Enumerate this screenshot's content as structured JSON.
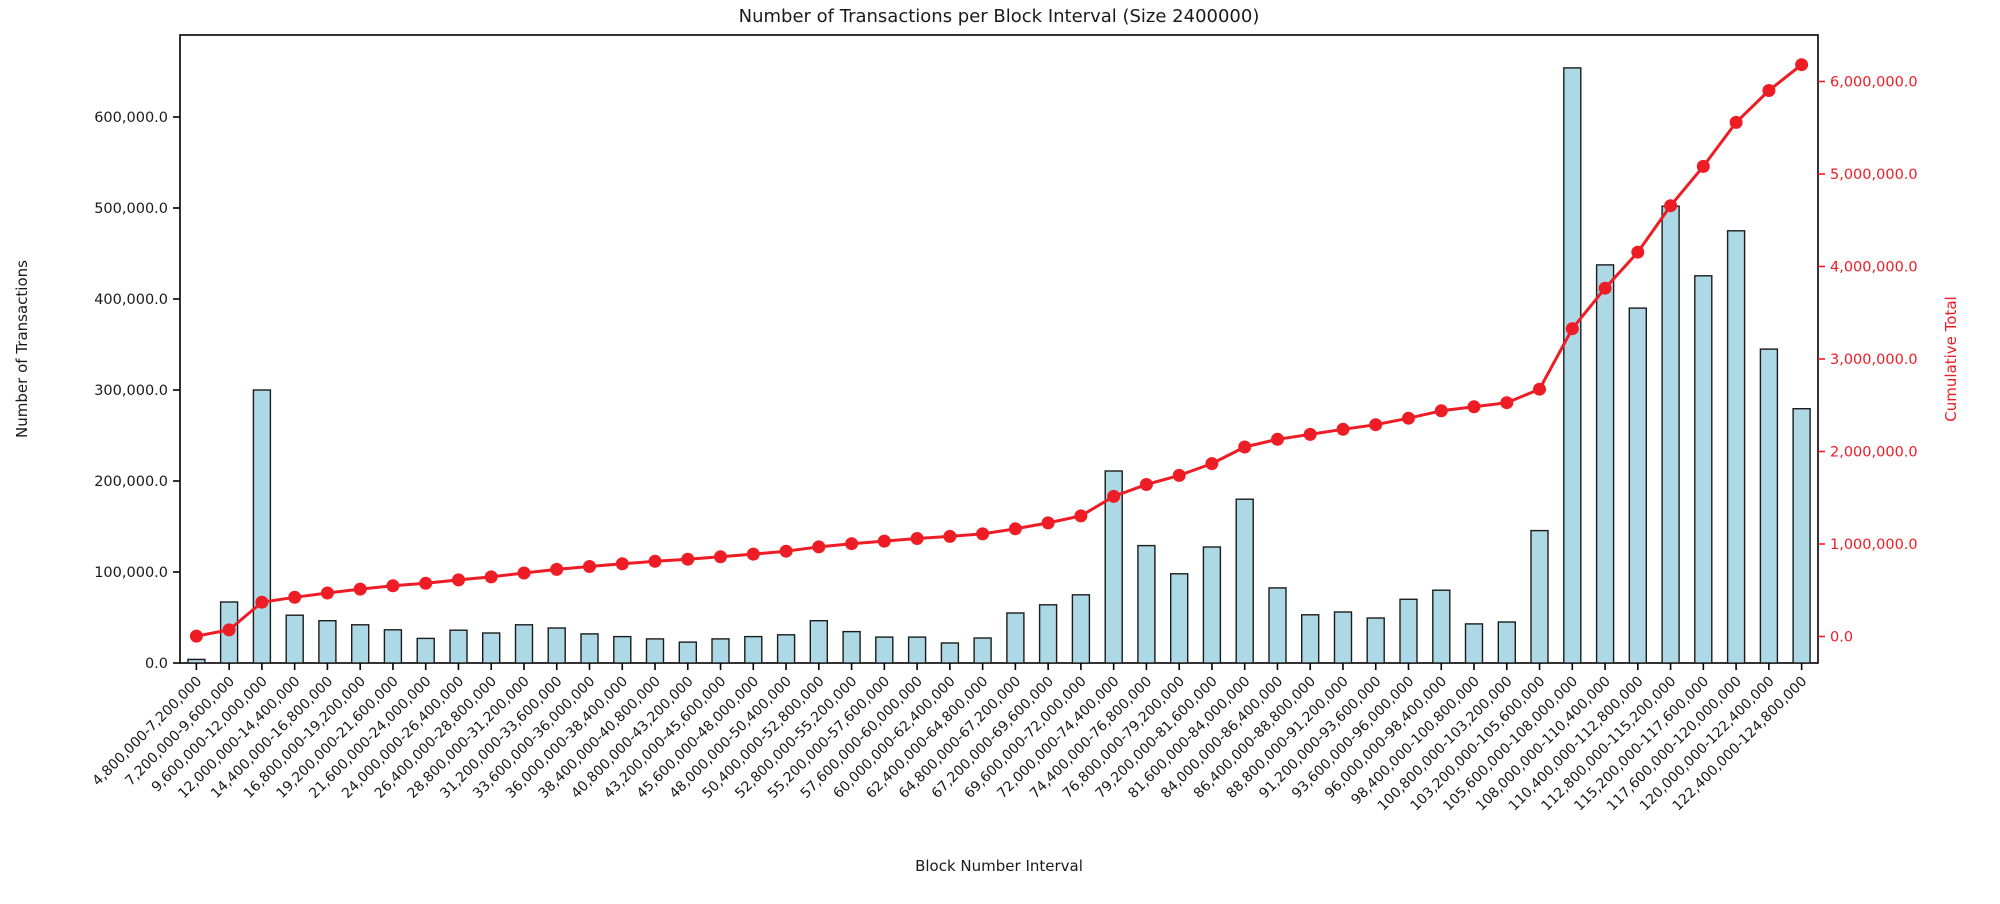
{
  "chart_data": {
    "type": "bar",
    "combo": "bar+line",
    "title": "Number of Transactions per Block Interval (Size 2400000)",
    "xlabel": "Block Number Interval",
    "ylabel_left": "Number of Transactions",
    "ylabel_right": "Cumulative Total",
    "legend_position": "none",
    "grid": false,
    "colors": {
      "bar_fill": "#add8e6",
      "bar_edge": "#1c1c1c",
      "line": "#ee1c25",
      "axis_text": "#1a1a1a",
      "spine": "#000000"
    },
    "categories": [
      "4,800,000-7,200,000",
      "7,200,000-9,600,000",
      "9,600,000-12,000,000",
      "12,000,000-14,400,000",
      "14,400,000-16,800,000",
      "16,800,000-19,200,000",
      "19,200,000-21,600,000",
      "21,600,000-24,000,000",
      "24,000,000-26,400,000",
      "26,400,000-28,800,000",
      "28,800,000-31,200,000",
      "31,200,000-33,600,000",
      "33,600,000-36,000,000",
      "36,000,000-38,400,000",
      "38,400,000-40,800,000",
      "40,800,000-43,200,000",
      "43,200,000-45,600,000",
      "45,600,000-48,000,000",
      "48,000,000-50,400,000",
      "50,400,000-52,800,000",
      "52,800,000-55,200,000",
      "55,200,000-57,600,000",
      "57,600,000-60,000,000",
      "60,000,000-62,400,000",
      "62,400,000-64,800,000",
      "64,800,000-67,200,000",
      "67,200,000-69,600,000",
      "69,600,000-72,000,000",
      "72,000,000-74,400,000",
      "74,400,000-76,800,000",
      "76,800,000-79,200,000",
      "79,200,000-81,600,000",
      "81,600,000-84,000,000",
      "84,000,000-86,400,000",
      "86,400,000-88,800,000",
      "88,800,000-91,200,000",
      "91,200,000-93,600,000",
      "93,600,000-96,000,000",
      "96,000,000-98,400,000",
      "98,400,000-100,800,000",
      "100,800,000-103,200,000",
      "103,200,000-105,600,000",
      "105,600,000-108,000,000",
      "108,000,000-110,400,000",
      "110,400,000-112,800,000",
      "112,800,000-115,200,000",
      "115,200,000-117,600,000",
      "117,600,000-120,000,000",
      "120,000,000-122,400,000",
      "122,400,000-124,800,000"
    ],
    "series": [
      {
        "name": "Number of Transactions",
        "type": "bar",
        "axis": "left",
        "values": [
          4000,
          67000,
          300000,
          52500,
          46500,
          42000,
          36500,
          27000,
          36000,
          33000,
          42000,
          38500,
          32000,
          29000,
          26500,
          23000,
          26500,
          29000,
          31000,
          46500,
          34500,
          28500,
          28500,
          22000,
          27500,
          55000,
          64000,
          75000,
          211000,
          129000,
          98000,
          127500,
          180000,
          82500,
          53000,
          56000,
          49500,
          70000,
          80000,
          43000,
          45000,
          145500,
          654000,
          437500,
          390000,
          502000,
          425500,
          475000,
          345000,
          279500
        ]
      },
      {
        "name": "Cumulative Total",
        "type": "line",
        "axis": "right",
        "values": [
          4000,
          71000,
          371000,
          423500,
          470000,
          512000,
          548500,
          575500,
          611500,
          644500,
          686500,
          725000,
          757000,
          786000,
          812500,
          835500,
          862000,
          891000,
          922000,
          968500,
          1003000,
          1031500,
          1060000,
          1082000,
          1109500,
          1164500,
          1228500,
          1303500,
          1514500,
          1643500,
          1741500,
          1869000,
          2049000,
          2131500,
          2184500,
          2240500,
          2290000,
          2360000,
          2440000,
          2483000,
          2528000,
          2673500,
          3327500,
          3765000,
          4155000,
          4657000,
          5082500,
          5557500,
          5902500,
          6182000
        ]
      }
    ],
    "left_axis": {
      "tick_labels": [
        "0.0",
        "100,000.0",
        "200,000.0",
        "300,000.0",
        "400,000.0",
        "500,000.0",
        "600,000.0"
      ],
      "tick_values": [
        0,
        100000,
        200000,
        300000,
        400000,
        500000,
        600000
      ],
      "range": [
        0,
        690000
      ]
    },
    "right_axis": {
      "tick_labels": [
        "0.0",
        "1,000,000.0",
        "2,000,000.0",
        "3,000,000.0",
        "4,000,000.0",
        "5,000,000.0",
        "6,000,000.0"
      ],
      "tick_values": [
        0,
        1000000,
        2000000,
        3000000,
        4000000,
        5000000,
        6000000
      ],
      "range": [
        -290000,
        6500000
      ]
    }
  }
}
